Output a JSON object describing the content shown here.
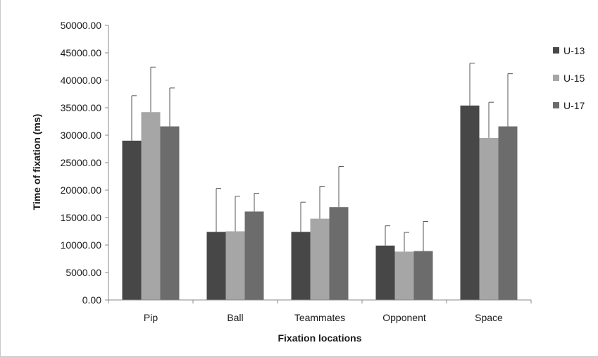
{
  "chart_data": {
    "type": "bar",
    "xlabel": "Fixation locations",
    "ylabel": "Time of fixation (ms)",
    "ylim": [
      0,
      50000
    ],
    "yticks": [
      "0.00",
      "5000.00",
      "10000.00",
      "15000.00",
      "20000.00",
      "25000.00",
      "30000.00",
      "35000.00",
      "40000.00",
      "45000.00",
      "50000.00"
    ],
    "categories": [
      "Pip",
      "Ball",
      "Teammates",
      "Opponent",
      "Space"
    ],
    "series": [
      {
        "name": "U-13",
        "color": "#474747",
        "values": [
          29000,
          12400,
          12400,
          9900,
          35400
        ],
        "error_upper": [
          37200,
          20300,
          17800,
          13500,
          43100
        ]
      },
      {
        "name": "U-15",
        "color": "#a6a6a6",
        "values": [
          34200,
          12500,
          14800,
          8800,
          29500
        ],
        "error_upper": [
          42400,
          18900,
          20700,
          12300,
          36000
        ]
      },
      {
        "name": "U-17",
        "color": "#6c6c6c",
        "values": [
          31600,
          16100,
          16900,
          8900,
          31600
        ],
        "error_upper": [
          38600,
          19400,
          24300,
          14300,
          41200
        ]
      }
    ],
    "legend_position": "right",
    "grid": false
  }
}
